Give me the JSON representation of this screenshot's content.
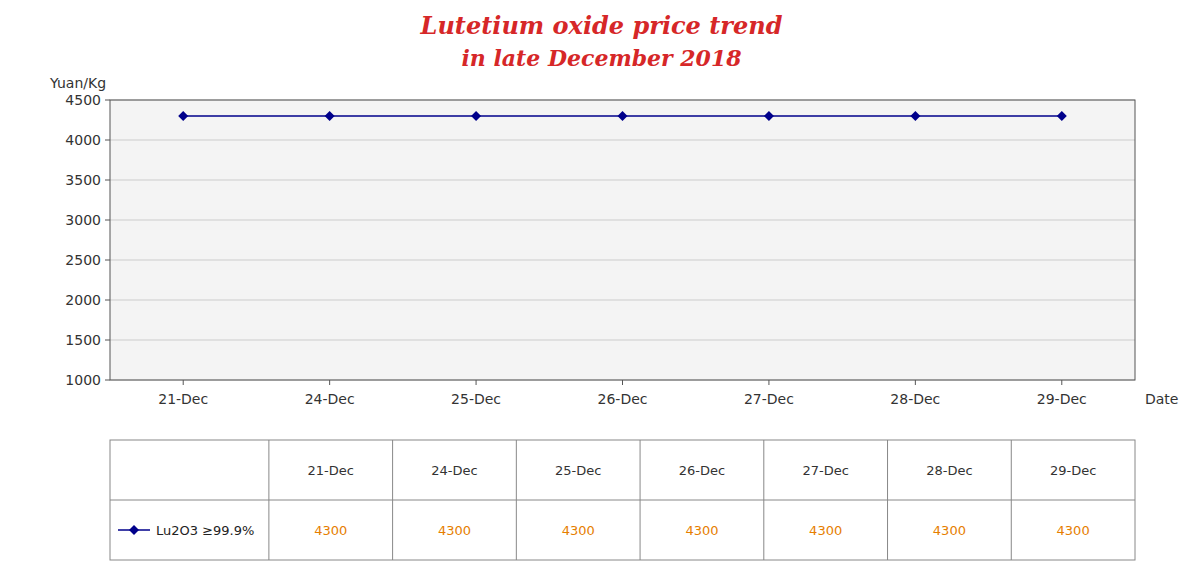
{
  "chart_data": {
    "type": "line",
    "title": "Lutetium oxide price trend",
    "subtitle": "in late December 2018",
    "y_label": "Yuan/Kg",
    "x_label": "Date",
    "categories": [
      "21-Dec",
      "24-Dec",
      "25-Dec",
      "26-Dec",
      "27-Dec",
      "28-Dec",
      "29-Dec"
    ],
    "series": [
      {
        "name": "Lu2O3  ≥99.9%",
        "color": "#00008B",
        "marker": "diamond",
        "values": [
          4300,
          4300,
          4300,
          4300,
          4300,
          4300,
          4300
        ]
      }
    ],
    "ylim": [
      1000,
      4500
    ],
    "yticks": [
      1000,
      1500,
      2000,
      2500,
      3000,
      3500,
      4000,
      4500
    ],
    "grid": true,
    "legend": "bottom",
    "data_labels": true
  }
}
